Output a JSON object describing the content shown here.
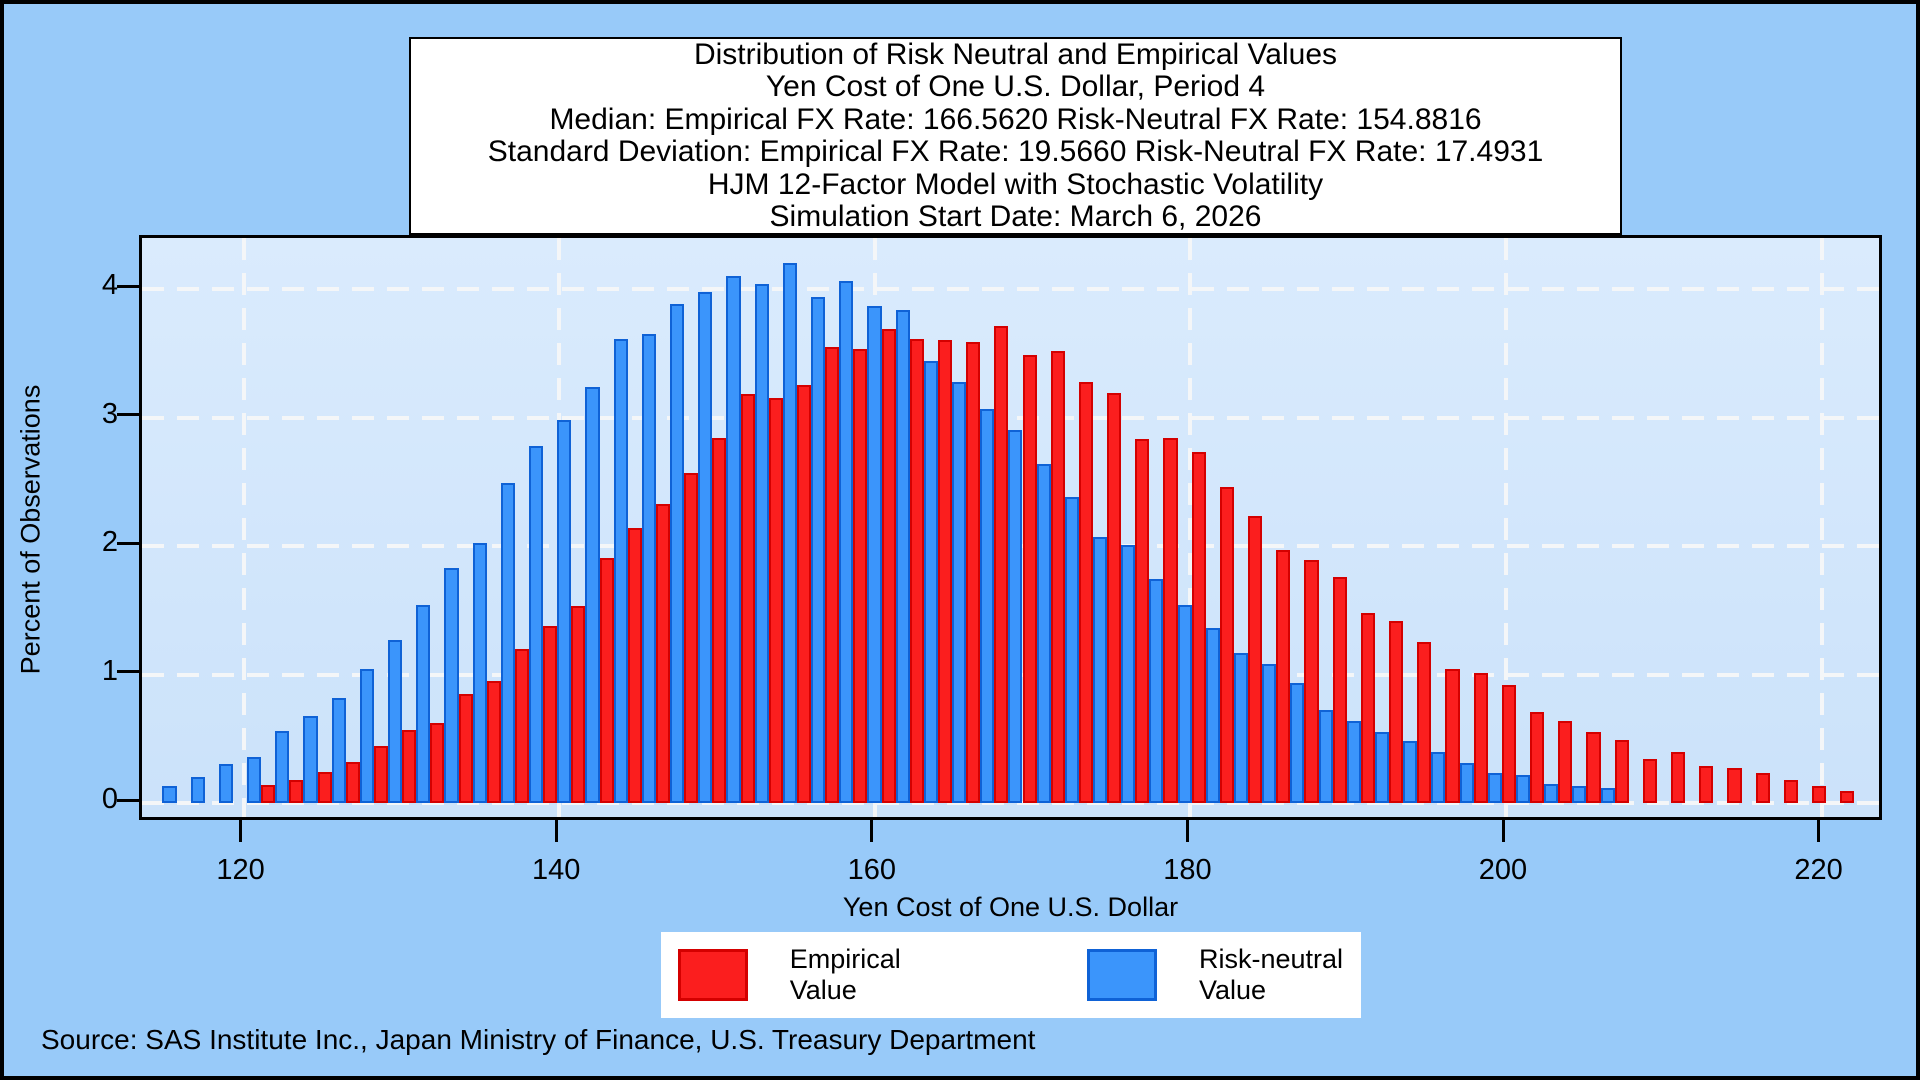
{
  "page": {
    "outer_background": "#98CAF9",
    "plot_background_top": "#DAEBFD",
    "plot_background_bottom": "#CBE2FA",
    "frame_color": "#000000",
    "gridline_color": "#F4F6F8"
  },
  "title_box": {
    "lines": [
      "Distribution of Risk Neutral and Empirical Values",
      "Yen Cost of One U.S. Dollar, Period 4",
      "Median: Empirical FX Rate: 166.5620   Risk-Neutral FX Rate: 154.8816",
      "Standard Deviation: Empirical FX Rate: 19.5660   Risk-Neutral FX Rate: 17.4931",
      "HJM 12-Factor Model with Stochastic Volatility",
      "Simulation Start Date: March 6, 2026"
    ]
  },
  "chart_data": {
    "type": "bar",
    "subtype": "interleaved-histogram",
    "title": "Distribution of Risk Neutral and Empirical Values",
    "xlabel": "Yen Cost of One U.S. Dollar",
    "ylabel": "Percent of Observations",
    "x_ticks": [
      120,
      140,
      160,
      180,
      200,
      220
    ],
    "y_ticks": [
      0,
      1,
      2,
      3,
      4
    ],
    "xlim": [
      113.6,
      224.1
    ],
    "ylim": [
      0,
      4.4
    ],
    "grid": "dashed-white",
    "legend_position": "bottom",
    "bin_start": 115.75,
    "bin_width": 1.787,
    "series": [
      {
        "name": "Risk-neutral Value",
        "color": "#3B95FB",
        "border_color": "#0F62D6",
        "values": [
          0.13,
          0.2,
          0.3,
          0.36,
          0.56,
          0.68,
          0.82,
          1.04,
          1.27,
          1.54,
          1.83,
          2.02,
          2.49,
          2.78,
          2.98,
          3.24,
          3.61,
          3.65,
          3.88,
          3.98,
          4.1,
          4.04,
          4.2,
          3.94,
          4.06,
          3.87,
          3.84,
          3.44,
          3.28,
          3.07,
          2.9,
          2.64,
          2.38,
          2.07,
          2.01,
          1.74,
          1.54,
          1.36,
          1.17,
          1.08,
          0.93,
          0.72,
          0.64,
          0.55,
          0.48,
          0.4,
          0.31,
          0.23,
          0.22,
          0.15,
          0.13,
          0.12,
          null,
          null,
          null,
          null,
          null,
          null,
          null,
          null
        ]
      },
      {
        "name": "Empirical Value",
        "color": "#FB1E1E",
        "border_color": "#D40000",
        "values": [
          null,
          null,
          null,
          0.14,
          0.18,
          0.24,
          0.32,
          0.44,
          0.57,
          0.62,
          0.85,
          0.95,
          1.2,
          1.38,
          1.53,
          1.91,
          2.14,
          2.33,
          2.57,
          2.84,
          3.18,
          3.15,
          3.25,
          3.55,
          3.53,
          3.69,
          3.61,
          3.6,
          3.59,
          3.71,
          3.49,
          3.52,
          3.28,
          3.19,
          2.83,
          2.84,
          2.73,
          2.46,
          2.23,
          1.97,
          1.89,
          1.76,
          1.48,
          1.42,
          1.25,
          1.04,
          1.01,
          0.92,
          0.71,
          0.64,
          0.55,
          0.49,
          0.34,
          0.4,
          0.29,
          0.27,
          0.23,
          0.18,
          0.13,
          0.09
        ]
      }
    ]
  },
  "legend": {
    "items": [
      {
        "label": "Empirical Value",
        "color": "#FB1E1E",
        "border_color": "#D40000"
      },
      {
        "label": "Risk-neutral Value",
        "color": "#3B95FB",
        "border_color": "#0F62D6"
      }
    ]
  },
  "source_note": "Source: SAS Institute Inc., Japan Ministry of Finance, U.S. Treasury Department"
}
